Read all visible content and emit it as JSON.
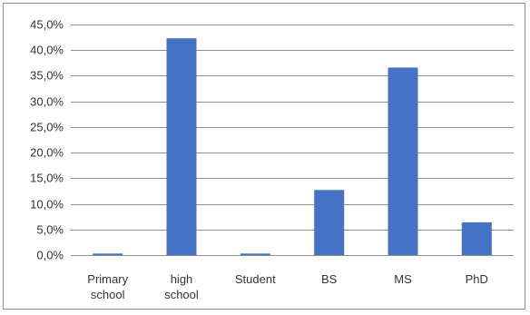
{
  "chart_data": {
    "type": "bar",
    "title": "",
    "xlabel": "",
    "ylabel": "",
    "categories": [
      [
        "Primary",
        "school"
      ],
      [
        "high",
        "school"
      ],
      [
        "Student"
      ],
      [
        "BS"
      ],
      [
        "MS"
      ],
      [
        "PhD"
      ]
    ],
    "values": [
      0.3,
      42.3,
      0.3,
      12.7,
      36.6,
      6.4
    ],
    "ylim": [
      0,
      45
    ],
    "yticks": [
      "0,0%",
      "5,0%",
      "10,0%",
      "15,0%",
      "20,0%",
      "25,0%",
      "30,0%",
      "35,0%",
      "40,0%",
      "45,0%"
    ],
    "grid": true,
    "legend": "none",
    "bar_color": "#4472c4"
  }
}
